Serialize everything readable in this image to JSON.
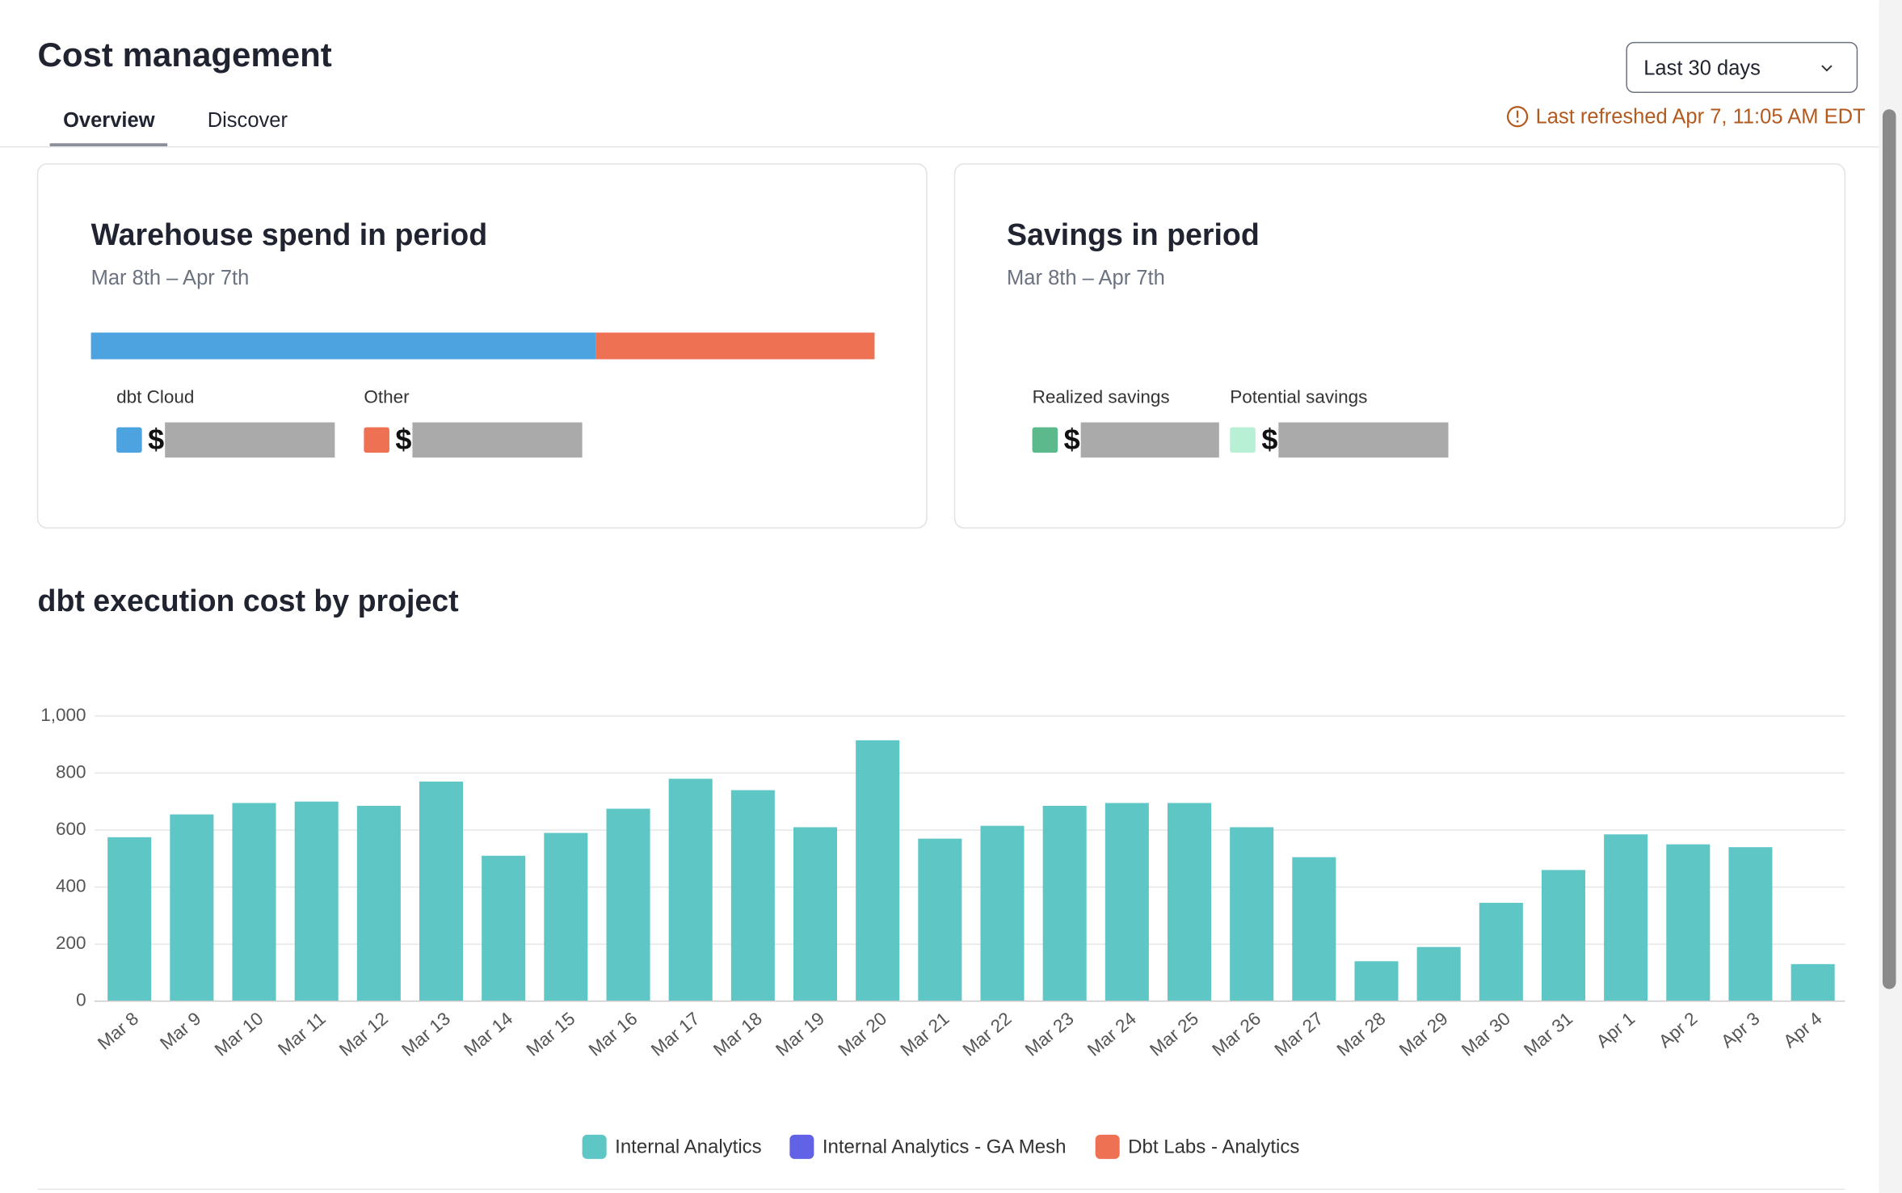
{
  "header": {
    "title": "Cost management",
    "tabs": [
      "Overview",
      "Discover"
    ],
    "dropdown": "Last 30 days",
    "refreshed": "Last refreshed Apr 7, 11:05 AM EDT"
  },
  "cards": [
    {
      "title": "Warehouse spend in period",
      "period": "Mar 8th – Apr 7th",
      "items": [
        {
          "label": "dbt Cloud",
          "currency": "$",
          "color": "#4da3e0"
        },
        {
          "label": "Other",
          "currency": "$",
          "color": "#ee7153"
        }
      ]
    },
    {
      "title": "Savings in period",
      "period": "Mar 8th – Apr 7th",
      "items": [
        {
          "label": "Realized savings",
          "currency": "$",
          "color": "#5bb98b"
        },
        {
          "label": "Potential savings",
          "currency": "$",
          "color": "#b7f0d4"
        }
      ]
    }
  ],
  "chart_data": {
    "type": "bar",
    "stacked": true,
    "title": "dbt execution cost by project",
    "categories": [
      "Mar 8",
      "Mar 9",
      "Mar 10",
      "Mar 11",
      "Mar 12",
      "Mar 13",
      "Mar 14",
      "Mar 15",
      "Mar 16",
      "Mar 17",
      "Mar 18",
      "Mar 19",
      "Mar 20",
      "Mar 21",
      "Mar 22",
      "Mar 23",
      "Mar 24",
      "Mar 25",
      "Mar 26",
      "Mar 27",
      "Mar 28",
      "Mar 29",
      "Mar 30",
      "Mar 31",
      "Apr 1",
      "Apr 2",
      "Apr 3",
      "Apr 4"
    ],
    "series": [
      {
        "name": "Internal Analytics",
        "color": "#5ec6c4",
        "values": [
          575,
          655,
          695,
          700,
          685,
          770,
          510,
          590,
          675,
          780,
          740,
          610,
          915,
          570,
          615,
          685,
          695,
          695,
          610,
          505,
          140,
          190,
          345,
          460,
          585,
          550,
          540,
          130
        ]
      },
      {
        "name": "Internal Analytics - GA Mesh",
        "color": "#6262e6",
        "values": [
          0,
          0,
          0,
          0,
          0,
          0,
          0,
          0,
          0,
          0,
          0,
          0,
          0,
          0,
          0,
          0,
          0,
          0,
          0,
          0,
          0,
          0,
          0,
          0,
          0,
          0,
          0,
          0
        ]
      },
      {
        "name": "Dbt Labs - Analytics",
        "color": "#ee7153",
        "values": [
          0,
          0,
          0,
          0,
          0,
          0,
          0,
          0,
          0,
          0,
          0,
          0,
          0,
          0,
          0,
          0,
          0,
          0,
          0,
          0,
          0,
          0,
          0,
          0,
          0,
          0,
          0,
          0
        ]
      }
    ],
    "ylim": [
      0,
      1000
    ],
    "yticks": [
      0,
      200,
      400,
      600,
      800,
      {
        "value": 1000,
        "label": "1,000"
      }
    ],
    "grid": true,
    "legend": "bottom"
  }
}
